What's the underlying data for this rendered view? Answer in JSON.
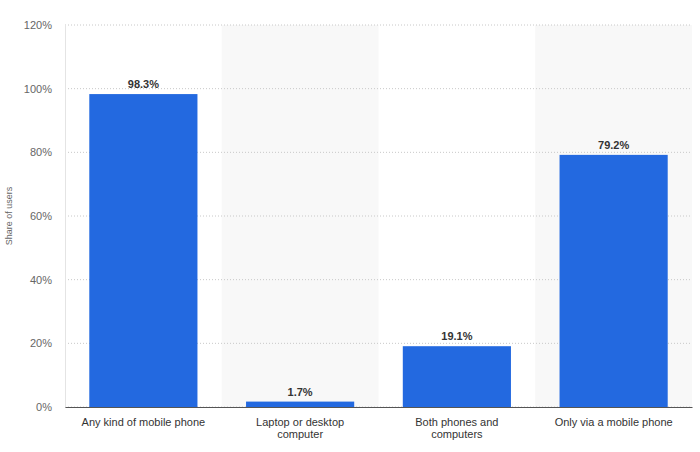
{
  "chart_data": {
    "type": "bar",
    "categories": [
      "Any kind of mobile phone",
      "Laptop or desktop computer",
      "Both phones and computers",
      "Only via a mobile phone"
    ],
    "values": [
      98.3,
      1.7,
      19.1,
      79.2
    ],
    "value_labels": [
      "98.3%",
      "1.7%",
      "19.1%",
      "79.2%"
    ],
    "data_labels": true,
    "color": "#2369e0",
    "ylabel": "Share of users",
    "ylim": [
      0,
      120
    ],
    "yticks": [
      {
        "value": 0,
        "label": "0%"
      },
      {
        "value": 20,
        "label": "20%"
      },
      {
        "value": 40,
        "label": "40%"
      },
      {
        "value": 60,
        "label": "60%"
      },
      {
        "value": 80,
        "label": "80%"
      },
      {
        "value": 100,
        "label": "100%"
      },
      {
        "value": 120,
        "label": "120%"
      }
    ],
    "grid": true
  }
}
